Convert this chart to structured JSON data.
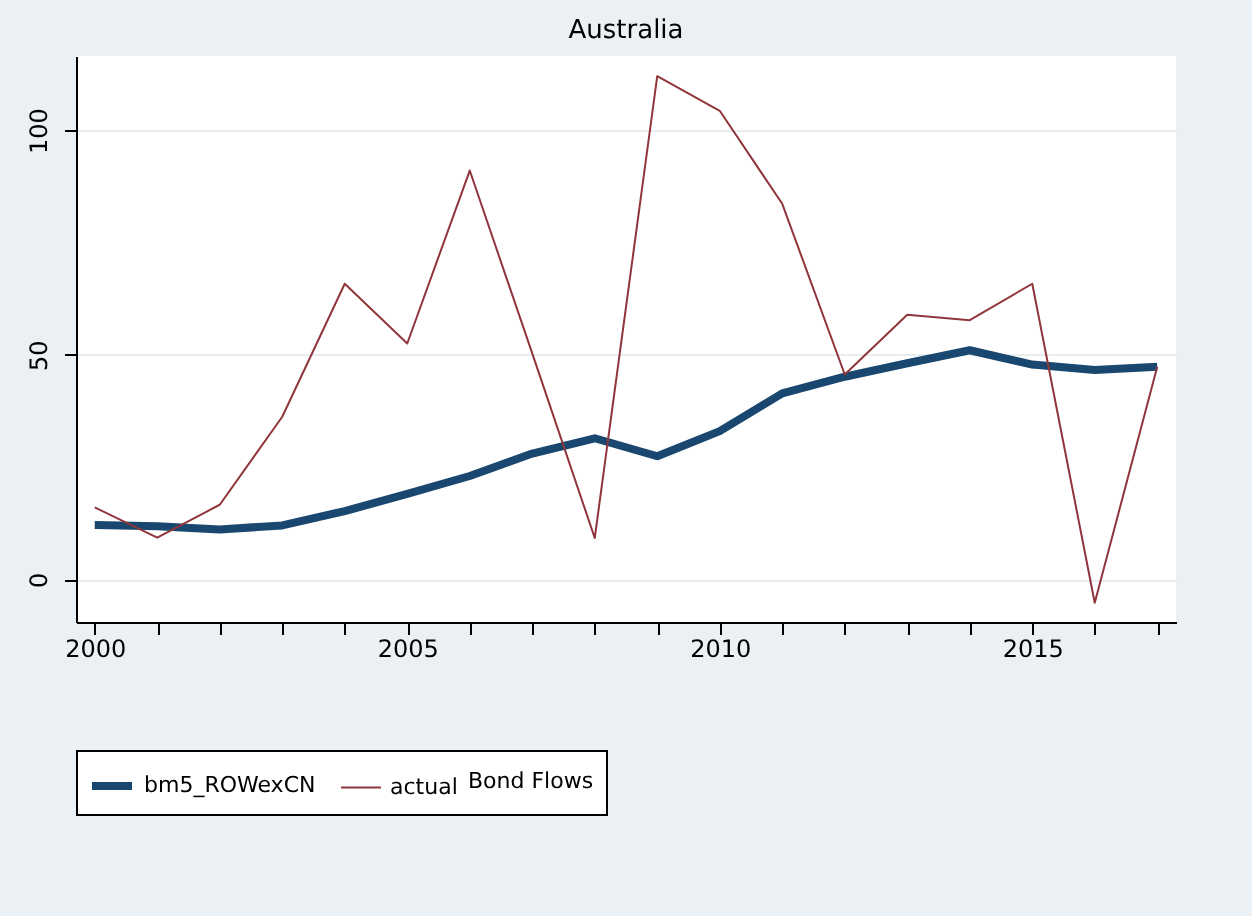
{
  "chart_data": {
    "type": "line",
    "title": "Australia",
    "legend_title": "Bond Flows",
    "x": [
      2000,
      2001,
      2002,
      2003,
      2004,
      2005,
      2006,
      2007,
      2008,
      2009,
      2010,
      2011,
      2012,
      2013,
      2014,
      2015,
      2016,
      2017
    ],
    "series": [
      {
        "name": "bm5_ROWexCN",
        "color": "#1a476f",
        "values": [
          12.1,
          11.8,
          11.1,
          12,
          15.2,
          19,
          23,
          28,
          31.4,
          27.4,
          33,
          41.4,
          45.1,
          48.1,
          51,
          47.8,
          46.6,
          47.3
        ]
      },
      {
        "name": "actual",
        "color": "#90353b",
        "values": [
          16,
          9.3,
          16.6,
          36.2,
          65.8,
          52.5,
          91,
          50.3,
          9.2,
          112,
          104.3,
          83.6,
          45.6,
          58.9,
          57.7,
          65.8,
          -5.2,
          47.3
        ]
      }
    ],
    "xlim": [
      1999.7,
      2017.3
    ],
    "xticks": [
      2000,
      {
        "value": 2001,
        "label": null
      },
      {
        "value": 2002,
        "label": null
      },
      {
        "value": 2003,
        "label": null
      },
      {
        "value": 2004,
        "label": null
      },
      2005,
      {
        "value": 2006,
        "label": null
      },
      {
        "value": 2007,
        "label": null
      },
      {
        "value": 2008,
        "label": null
      },
      {
        "value": 2009,
        "label": null
      },
      2010,
      {
        "value": 2011,
        "label": null
      },
      {
        "value": 2012,
        "label": null
      },
      {
        "value": 2013,
        "label": null
      },
      {
        "value": 2014,
        "label": null
      },
      2015,
      {
        "value": 2016,
        "label": null
      },
      {
        "value": 2017,
        "label": null
      }
    ],
    "ylim": [
      -9.5,
      116.5
    ],
    "yticks": [
      0,
      50,
      100
    ],
    "grid": "y",
    "legend": "bottom",
    "marker": "none",
    "line_style": "solid"
  }
}
